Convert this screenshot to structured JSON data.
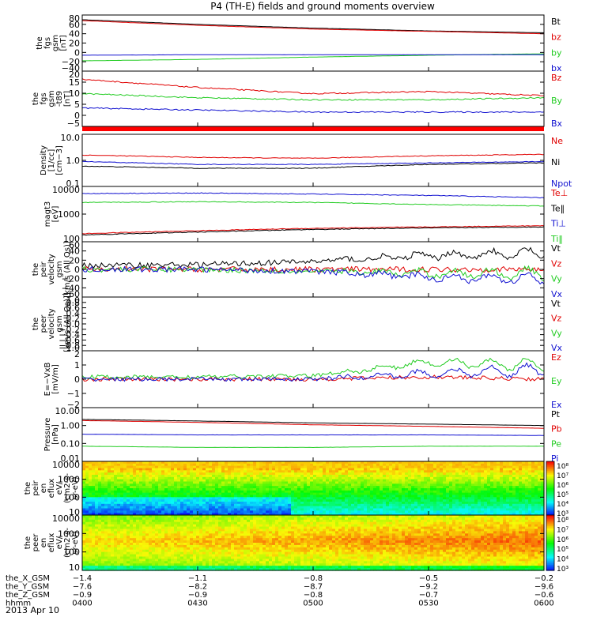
{
  "title": "P4 (TH-E) fields and ground moments overview",
  "date": "2013 Apr 10",
  "colors": {
    "black": "#000000",
    "red": "#e00000",
    "green": "#22cc22",
    "blue": "#1010d0"
  },
  "panels": [
    {
      "key": "fgs",
      "ylabel": [
        "the",
        "fgs",
        "gsm",
        "[nT]"
      ],
      "yticks": [
        "80",
        "60",
        "40",
        "20",
        "0",
        "−20",
        "−40"
      ],
      "legend": [
        {
          "t": "Bt",
          "c": "black"
        },
        {
          "t": "bz",
          "c": "red"
        },
        {
          "t": "by",
          "c": "green"
        },
        {
          "t": "bx",
          "c": "blue"
        }
      ]
    },
    {
      "key": "fgs_dsl",
      "ylabel": [
        "the",
        "fgs",
        "gsm",
        "-t89",
        "[nT]"
      ],
      "yticks": [
        "20",
        "15",
        "10",
        "5",
        "0",
        "−5"
      ],
      "legend": [
        {
          "t": "Bz",
          "c": "red"
        },
        {
          "t": "By",
          "c": "green"
        },
        {
          "t": "Bx",
          "c": "blue"
        }
      ]
    },
    {
      "key": "density",
      "ylabel": [
        "Density",
        "[1/cc]",
        "[cm−3]"
      ],
      "yticks": [
        "10.0",
        "1.0",
        "0.1"
      ],
      "legend": [
        {
          "t": "Ne",
          "c": "red"
        },
        {
          "t": "Ni",
          "c": "black"
        },
        {
          "t": "Npot",
          "c": "blue"
        }
      ]
    },
    {
      "key": "temp",
      "ylabel": [
        "magt3",
        "[eV]"
      ],
      "yticks": [
        "10000",
        "1000",
        "100"
      ],
      "legend": [
        {
          "t": "Te⊥",
          "c": "red"
        },
        {
          "t": "Te‖",
          "c": "black"
        },
        {
          "t": "Ti⊥",
          "c": "blue"
        },
        {
          "t": "Ti‖",
          "c": "green"
        }
      ]
    },
    {
      "key": "peir_vel",
      "ylabel": [
        "the",
        "peir",
        "velocity",
        "gsm",
        "[km/s (All Qs)]"
      ],
      "yticks": [
        "60",
        "40",
        "20",
        "0",
        "−20",
        "−40",
        "−60"
      ],
      "legend": [
        {
          "t": "Vt",
          "c": "black"
        },
        {
          "t": "Vz",
          "c": "red"
        },
        {
          "t": "Vy",
          "c": "green"
        },
        {
          "t": "Vx",
          "c": "blue"
        }
      ]
    },
    {
      "key": "peer_vel",
      "ylabel": [
        "the",
        "peer",
        "velocity",
        "gsm",
        "[km/s (All Qs)]"
      ],
      "yticks": [
        "1.0",
        "0.8",
        "0.6",
        "0.4",
        "0.2",
        "0.0",
        "−0.2",
        "−0.4",
        "−0.6",
        "−0.8",
        "−1.0"
      ],
      "legend": [
        {
          "t": "Vt",
          "c": "black"
        },
        {
          "t": "Vz",
          "c": "red"
        },
        {
          "t": "Vy",
          "c": "green"
        },
        {
          "t": "Vx",
          "c": "blue"
        }
      ]
    },
    {
      "key": "efield",
      "ylabel": [
        "E=−VxB",
        "[mV/m]"
      ],
      "yticks": [
        "2",
        "1",
        "0",
        "−1",
        "−2"
      ],
      "legend": [
        {
          "t": "Ez",
          "c": "red"
        },
        {
          "t": "Ey",
          "c": "green"
        },
        {
          "t": "Ex",
          "c": "blue"
        }
      ]
    },
    {
      "key": "pressure",
      "ylabel": [
        "Pressure",
        "[nPa]"
      ],
      "yticks": [
        "10.00",
        "1.00",
        "0.10",
        "0.01"
      ],
      "legend": [
        {
          "t": "Pt",
          "c": "black"
        },
        {
          "t": "Pb",
          "c": "red"
        },
        {
          "t": "Pe",
          "c": "green"
        },
        {
          "t": "Pi",
          "c": "blue"
        }
      ]
    },
    {
      "key": "peir_en",
      "ylabel": [
        "the",
        "peir",
        "en",
        "eflux",
        "eV/",
        "(cm2-s-",
        "sr-eV)"
      ],
      "yticks": [
        "10000",
        "1000",
        "100",
        "10"
      ],
      "colorbar": [
        "10⁸",
        "10⁷",
        "10⁶",
        "10⁵",
        "10⁴",
        "10³"
      ]
    },
    {
      "key": "peer_en",
      "ylabel": [
        "the",
        "peer",
        "en",
        "eflux",
        "eV/",
        "(cm2-s-",
        "sr-eV)"
      ],
      "yticks": [
        "10000",
        "1000",
        "100",
        "10"
      ],
      "colorbar": [
        "10⁸",
        "10⁷",
        "10⁶",
        "10⁵",
        "10⁴",
        "10³"
      ]
    }
  ],
  "ephemeris": [
    {
      "label": "the_X_GSM",
      "values": [
        "−1.4",
        "−1.1",
        "−0.8",
        "−0.5",
        "−0.2"
      ]
    },
    {
      "label": "the_Y_GSM",
      "values": [
        "−7.6",
        "−8.2",
        "−8.7",
        "−9.2",
        "−9.6"
      ]
    },
    {
      "label": "the_Z_GSM",
      "values": [
        "−0.9",
        "−0.9",
        "−0.8",
        "−0.7",
        "−0.6"
      ]
    },
    {
      "label": "hhmm",
      "values": [
        "0400",
        "0430",
        "0500",
        "0530",
        "0600"
      ]
    }
  ],
  "chart_data": [
    {
      "type": "line",
      "title": "fgs gsm [nT]",
      "x": [
        "04:00",
        "04:30",
        "05:00",
        "05:30",
        "06:00"
      ],
      "ylim": [
        -40,
        80
      ],
      "series": [
        {
          "name": "Bt",
          "values": [
            70,
            60,
            52,
            46,
            42
          ]
        },
        {
          "name": "bz",
          "values": [
            68,
            58,
            50,
            45,
            40
          ]
        },
        {
          "name": "by",
          "values": [
            -18,
            -15,
            -10,
            -6,
            -3
          ]
        },
        {
          "name": "bx",
          "values": [
            -6,
            -5,
            -5,
            -5,
            -5
          ]
        }
      ]
    },
    {
      "type": "line",
      "title": "fgs gsm -t89 [nT]",
      "x": [
        "04:00",
        "04:30",
        "05:00",
        "05:30",
        "06:00"
      ],
      "ylim": [
        -7,
        20
      ],
      "series": [
        {
          "name": "Bz",
          "values": [
            16,
            12,
            9,
            10,
            8
          ]
        },
        {
          "name": "By",
          "values": [
            9,
            7,
            6,
            6,
            7
          ]
        },
        {
          "name": "Bx",
          "values": [
            2,
            1,
            0,
            0,
            0
          ]
        }
      ]
    },
    {
      "type": "line",
      "title": "Density [cm-3]",
      "scale": "log",
      "x": [
        "04:00",
        "04:30",
        "05:00",
        "05:30",
        "06:00"
      ],
      "ylim": [
        0.1,
        10
      ],
      "series": [
        {
          "name": "Ne",
          "values": [
            1.6,
            1.3,
            1.2,
            1.5,
            1.7
          ]
        },
        {
          "name": "Ni",
          "values": [
            0.6,
            0.5,
            0.5,
            0.7,
            0.8
          ]
        },
        {
          "name": "Npot",
          "values": [
            0.9,
            0.7,
            0.7,
            0.8,
            0.9
          ]
        }
      ]
    },
    {
      "type": "line",
      "title": "magt3 [eV]",
      "scale": "log",
      "x": [
        "04:00",
        "04:30",
        "05:00",
        "05:30",
        "06:00"
      ],
      "ylim": [
        100,
        12000
      ],
      "series": [
        {
          "name": "Te⊥",
          "values": [
            200,
            260,
            320,
            360,
            400
          ]
        },
        {
          "name": "Te‖",
          "values": [
            180,
            230,
            290,
            330,
            360
          ]
        },
        {
          "name": "Ti⊥",
          "values": [
            6500,
            6800,
            6200,
            5500,
            4500
          ]
        },
        {
          "name": "Ti‖",
          "values": [
            3000,
            3200,
            3000,
            2500,
            2200
          ]
        }
      ]
    },
    {
      "type": "line",
      "title": "peir velocity gsm [km/s]",
      "x": [
        "04:00",
        "04:30",
        "05:00",
        "05:30",
        "06:00"
      ],
      "ylim": [
        -70,
        70
      ],
      "series": [
        {
          "name": "Vt",
          "values": [
            10,
            12,
            20,
            35,
            40
          ]
        },
        {
          "name": "Vz",
          "values": [
            0,
            0,
            0,
            0,
            0
          ]
        },
        {
          "name": "Vy",
          "values": [
            0,
            0,
            -5,
            -10,
            -10
          ]
        },
        {
          "name": "Vx",
          "values": [
            0,
            0,
            -5,
            -20,
            -25
          ]
        }
      ]
    },
    {
      "type": "line",
      "title": "peer velocity gsm [km/s]",
      "x": [
        "04:00",
        "04:30",
        "05:00",
        "05:30",
        "06:00"
      ],
      "ylim": [
        -1,
        1
      ],
      "series": []
    },
    {
      "type": "line",
      "title": "E=-VxB [mV/m]",
      "x": [
        "04:00",
        "04:30",
        "05:00",
        "05:30",
        "06:00"
      ],
      "ylim": [
        -2.5,
        2.5
      ],
      "series": [
        {
          "name": "Ez",
          "values": [
            0,
            0,
            0,
            0.2,
            0
          ]
        },
        {
          "name": "Ey",
          "values": [
            0.2,
            0.2,
            0.3,
            1.5,
            1.2
          ]
        },
        {
          "name": "Ex",
          "values": [
            0,
            0,
            0,
            0.5,
            0.8
          ]
        }
      ]
    },
    {
      "type": "line",
      "title": "Pressure [nPa]",
      "scale": "log",
      "x": [
        "04:00",
        "04:30",
        "05:00",
        "05:30",
        "06:00"
      ],
      "ylim": [
        0.01,
        10
      ],
      "series": [
        {
          "name": "Pt",
          "values": [
            2.2,
            1.8,
            1.4,
            1.2,
            1.0
          ]
        },
        {
          "name": "Pb",
          "values": [
            1.9,
            1.5,
            1.1,
            0.9,
            0.7
          ]
        },
        {
          "name": "Pe",
          "values": [
            0.07,
            0.06,
            0.06,
            0.07,
            0.07
          ]
        },
        {
          "name": "Pi",
          "values": [
            0.33,
            0.3,
            0.3,
            0.3,
            0.28
          ]
        }
      ]
    },
    {
      "type": "heatmap",
      "title": "peir en eflux",
      "yscale": "log",
      "ylim": [
        7,
        20000
      ],
      "zlim": [
        1000,
        100000000
      ]
    },
    {
      "type": "heatmap",
      "title": "peer en eflux",
      "yscale": "log",
      "ylim": [
        7,
        20000
      ],
      "zlim": [
        1000,
        100000000
      ]
    }
  ]
}
